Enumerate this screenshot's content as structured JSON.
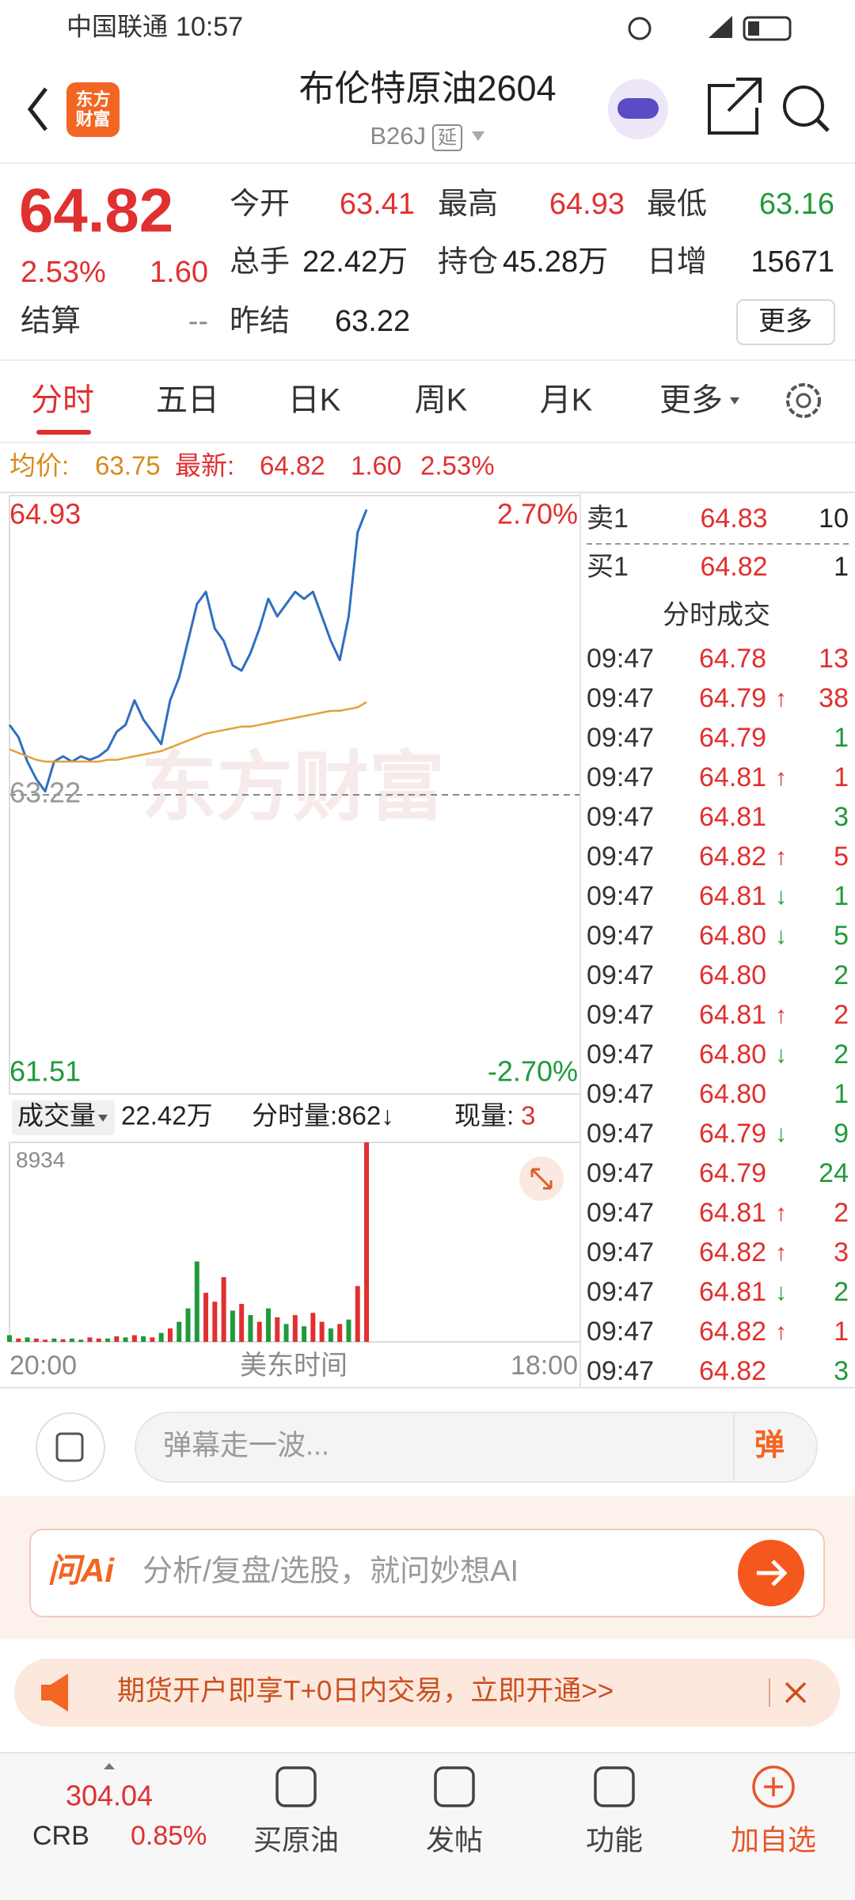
{
  "status_bar": {
    "carrier": "中国联通",
    "time": "10:57"
  },
  "header": {
    "title": "布伦特原油2604",
    "code": "B26J",
    "tag": "延",
    "logo_lines": [
      "东方",
      "财富"
    ]
  },
  "quote": {
    "price": "64.82",
    "change_pct": "2.53%",
    "change": "1.60",
    "settle_label": "结算",
    "settle": "--",
    "open_label": "今开",
    "open": "63.41",
    "high_label": "最高",
    "high": "64.93",
    "low_label": "最低",
    "low": "63.16",
    "volume_label": "总手",
    "volume": "22.42万",
    "oi_label": "持仓",
    "oi": "45.28万",
    "oi_change_label": "日增",
    "oi_change": "15671",
    "prev_settle_label": "昨结",
    "prev_settle": "63.22",
    "more": "更多"
  },
  "tabs": [
    "分时",
    "五日",
    "日K",
    "周K",
    "月K",
    "更多"
  ],
  "summary": {
    "avg_label": "均价:",
    "avg": "63.75",
    "latest_label": "最新:",
    "latest": "64.82",
    "change": "1.60",
    "pct": "2.53%"
  },
  "watermark": "东方财富",
  "chart_data": [
    {
      "type": "line",
      "ylim": [
        61.51,
        64.93
      ],
      "yticks": [
        61.51,
        63.22,
        64.93
      ],
      "y2lim": [
        -2.7,
        2.7
      ],
      "y2ticks": [
        {
          "value": -2.7,
          "label": "-2.70%"
        },
        {
          "value": 2.7,
          "label": "2.70%"
        }
      ],
      "xtick_labels": [
        "20:00",
        "美东时间",
        "18:00"
      ],
      "series": [
        {
          "color": "#2f6fc0",
          "values": [
            63.62,
            63.55,
            63.41,
            63.31,
            63.24,
            63.41,
            63.44,
            63.41,
            63.44,
            63.42,
            63.44,
            63.48,
            63.58,
            63.62,
            63.76,
            63.65,
            63.58,
            63.51,
            63.76,
            63.89,
            64.1,
            64.31,
            64.38,
            64.17,
            64.1,
            63.96,
            63.93,
            64.03,
            64.17,
            64.34,
            64.24,
            64.31,
            64.38,
            64.34,
            64.38,
            64.24,
            64.1,
            63.99,
            64.24,
            64.72,
            64.85
          ]
        },
        {
          "color": "#e3a13a",
          "values": [
            63.48,
            63.46,
            63.44,
            63.42,
            63.41,
            63.41,
            63.41,
            63.41,
            63.41,
            63.41,
            63.41,
            63.42,
            63.42,
            63.43,
            63.44,
            63.45,
            63.46,
            63.47,
            63.49,
            63.51,
            63.53,
            63.55,
            63.57,
            63.58,
            63.59,
            63.6,
            63.61,
            63.61,
            63.62,
            63.63,
            63.64,
            63.65,
            63.66,
            63.67,
            63.68,
            63.69,
            63.7,
            63.7,
            63.71,
            63.72,
            63.75
          ]
        }
      ]
    },
    {
      "type": "bar",
      "ylim": [
        0,
        8934
      ],
      "yticks": [
        8934
      ],
      "values": [
        300,
        150,
        200,
        150,
        100,
        150,
        120,
        150,
        100,
        200,
        150,
        150,
        250,
        200,
        300,
        250,
        200,
        400,
        600,
        900,
        1500,
        3600,
        2200,
        1800,
        2900,
        1400,
        1700,
        1200,
        900,
        1500,
        1100,
        800,
        1200,
        700,
        1300,
        900,
        600,
        800,
        1000,
        2500,
        8934
      ],
      "bar_colors": [
        "#1f9a3a",
        "#e03030",
        "#1f9a3a",
        "#e03030",
        "#e03030",
        "#1f9a3a",
        "#e03030",
        "#1f9a3a",
        "#1f9a3a",
        "#e03030",
        "#e03030",
        "#1f9a3a",
        "#e03030",
        "#1f9a3a",
        "#e03030",
        "#1f9a3a",
        "#e03030",
        "#1f9a3a",
        "#e03030",
        "#1f9a3a",
        "#1f9a3a",
        "#1f9a3a",
        "#e03030",
        "#e03030",
        "#e03030",
        "#1f9a3a",
        "#e03030",
        "#1f9a3a",
        "#e03030",
        "#1f9a3a",
        "#e03030",
        "#1f9a3a",
        "#e03030",
        "#1f9a3a",
        "#e03030",
        "#e03030",
        "#1f9a3a",
        "#e03030",
        "#1f9a3a",
        "#e03030",
        "#e03030"
      ]
    }
  ],
  "volume_header": {
    "label": "成交量",
    "total": "22.42万",
    "tick_volume": "分时量:862↓",
    "current_label": "现量:",
    "current": "3"
  },
  "order_book": {
    "ask_label": "卖1",
    "ask_price": "64.83",
    "ask_size": "10",
    "bid_label": "买1",
    "bid_price": "64.82",
    "bid_size": "1"
  },
  "trades": {
    "title": "分时成交",
    "arrow_colors": {
      "↑": "#e03030",
      "↓": "#1f9a3a"
    },
    "rows": [
      {
        "time": "09:47",
        "price": "64.78",
        "volume": "13",
        "color": "#e03030"
      },
      {
        "time": "09:47",
        "price": "64.79",
        "arrow": "↑",
        "volume": "38",
        "color": "#e03030"
      },
      {
        "time": "09:47",
        "price": "64.79",
        "volume": "1",
        "color": "#1f9a3a"
      },
      {
        "time": "09:47",
        "price": "64.81",
        "arrow": "↑",
        "volume": "1",
        "color": "#e03030"
      },
      {
        "time": "09:47",
        "price": "64.81",
        "volume": "3",
        "color": "#1f9a3a"
      },
      {
        "time": "09:47",
        "price": "64.82",
        "arrow": "↑",
        "volume": "5",
        "color": "#e03030"
      },
      {
        "time": "09:47",
        "price": "64.81",
        "arrow": "↓",
        "volume": "1",
        "color": "#1f9a3a"
      },
      {
        "time": "09:47",
        "price": "64.80",
        "arrow": "↓",
        "volume": "5",
        "color": "#1f9a3a"
      },
      {
        "time": "09:47",
        "price": "64.80",
        "volume": "2",
        "color": "#1f9a3a"
      },
      {
        "time": "09:47",
        "price": "64.81",
        "arrow": "↑",
        "volume": "2",
        "color": "#e03030"
      },
      {
        "time": "09:47",
        "price": "64.80",
        "arrow": "↓",
        "volume": "2",
        "color": "#1f9a3a"
      },
      {
        "time": "09:47",
        "price": "64.80",
        "volume": "1",
        "color": "#1f9a3a"
      },
      {
        "time": "09:47",
        "price": "64.79",
        "arrow": "↓",
        "volume": "9",
        "color": "#1f9a3a"
      },
      {
        "time": "09:47",
        "price": "64.79",
        "volume": "24",
        "color": "#1f9a3a"
      },
      {
        "time": "09:47",
        "price": "64.81",
        "arrow": "↑",
        "volume": "2",
        "color": "#e03030"
      },
      {
        "time": "09:47",
        "price": "64.82",
        "arrow": "↑",
        "volume": "3",
        "color": "#e03030"
      },
      {
        "time": "09:47",
        "price": "64.81",
        "arrow": "↓",
        "volume": "2",
        "color": "#1f9a3a"
      },
      {
        "time": "09:47",
        "price": "64.82",
        "arrow": "↑",
        "volume": "1",
        "color": "#e03030"
      },
      {
        "time": "09:47",
        "price": "64.82",
        "volume": "3",
        "color": "#1f9a3a"
      }
    ]
  },
  "comment": {
    "placeholder": "弹幕走一波...",
    "button": "弹"
  },
  "ai": {
    "logo": "问Ai",
    "placeholder": "分析/复盘/选股，就问妙想AI"
  },
  "banner": {
    "text": "期货开户即享T+0日内交易，立即开通>>"
  },
  "nav": {
    "index_value": "304.04",
    "index_name": "CRB",
    "index_change": "0.85%",
    "items": [
      "买原油",
      "发帖",
      "功能",
      "加自选"
    ]
  }
}
